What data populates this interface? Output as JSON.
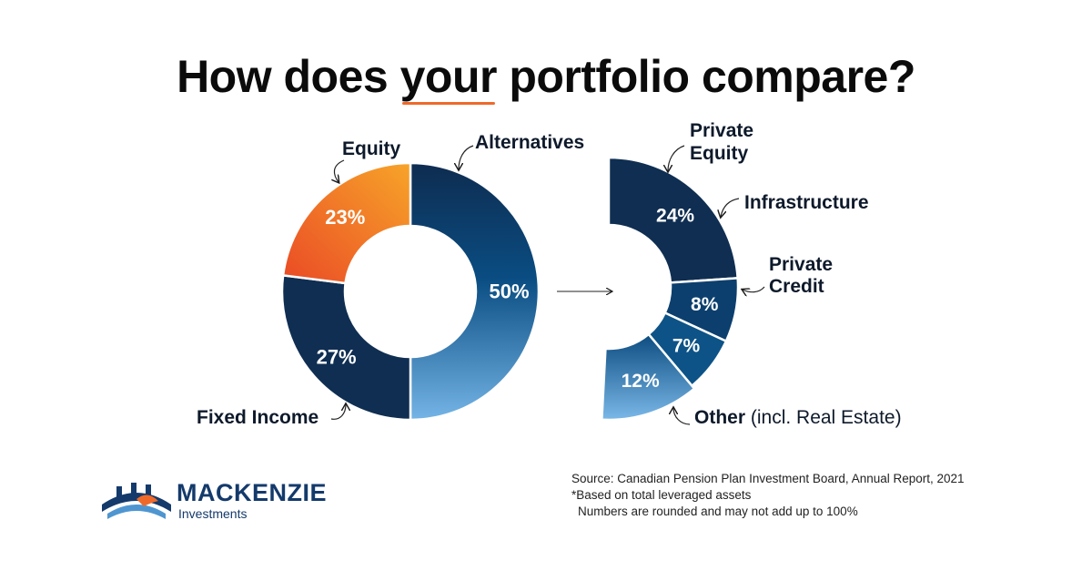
{
  "title": {
    "before": "How does ",
    "emphasis": "your",
    "after": " portfolio compare?"
  },
  "chart_data": [
    {
      "type": "pie",
      "title": "",
      "categories": [
        "Alternatives",
        "Fixed Income",
        "Equity"
      ],
      "values": [
        50,
        27,
        23
      ],
      "labels": [
        "50%",
        "27%",
        "23%"
      ]
    },
    {
      "type": "pie",
      "title": "",
      "categories": [
        "Private Equity",
        "Infrastructure",
        "Private Credit",
        "Other (incl. Real Estate)"
      ],
      "values": [
        24,
        8,
        7,
        12
      ],
      "labels": [
        "24%",
        "8%",
        "7%",
        "12%"
      ],
      "category_lines": [
        [
          "Private",
          "Equity"
        ],
        [
          "Infrastructure"
        ],
        [
          "Private",
          "Credit"
        ],
        [
          "Other",
          " (incl. Real Estate)"
        ]
      ]
    }
  ],
  "colors": {
    "navy": "#0f2e52",
    "blue": "#0f5f97",
    "lightblue": "#6fb0e0",
    "orange": "#ef5a2a",
    "amber": "#f6a02a"
  },
  "logo": {
    "name": "MACKENZIE",
    "sub": "Investments"
  },
  "source": {
    "line1": "Source: Canadian Pension Plan Investment Board, Annual Report, 2021",
    "line2": "*Based on total leveraged assets",
    "line3": "Numbers are rounded and may not add up to 100%"
  }
}
